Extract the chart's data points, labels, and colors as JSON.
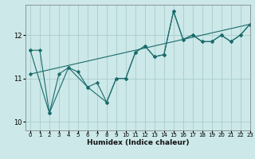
{
  "xlabel": "Humidex (Indice chaleur)",
  "background_color": "#cce8e8",
  "grid_color": "#aacccc",
  "line_color": "#1a6b6b",
  "xlim": [
    -0.5,
    23
  ],
  "ylim": [
    9.8,
    12.7
  ],
  "yticks": [
    10,
    11,
    12
  ],
  "xticks": [
    0,
    1,
    2,
    3,
    4,
    5,
    6,
    7,
    8,
    9,
    10,
    11,
    12,
    13,
    14,
    15,
    16,
    17,
    18,
    19,
    20,
    21,
    22,
    23
  ],
  "series1_x": [
    0,
    1,
    2,
    3,
    4,
    5,
    6,
    7,
    8,
    9,
    10,
    11,
    12,
    13,
    14,
    15,
    16,
    17,
    18,
    19,
    20,
    21,
    22,
    23
  ],
  "series1_y": [
    11.65,
    11.65,
    10.2,
    11.1,
    11.25,
    11.15,
    10.8,
    10.9,
    10.45,
    11.0,
    11.0,
    11.6,
    11.75,
    11.5,
    11.55,
    12.55,
    11.9,
    12.0,
    11.85,
    11.85,
    12.0,
    11.85,
    12.0,
    12.25
  ],
  "series2_x": [
    0,
    2,
    4,
    6,
    8,
    9,
    10,
    11,
    12,
    13,
    14,
    15,
    16,
    17,
    18,
    19,
    20,
    21,
    22,
    23
  ],
  "series2_y": [
    11.65,
    10.2,
    11.25,
    10.8,
    10.45,
    11.0,
    11.0,
    11.6,
    11.75,
    11.5,
    11.55,
    12.55,
    11.9,
    12.0,
    11.85,
    11.85,
    12.0,
    11.85,
    12.0,
    12.25
  ],
  "trend_x": [
    0,
    23
  ],
  "trend_y": [
    11.1,
    12.25
  ]
}
